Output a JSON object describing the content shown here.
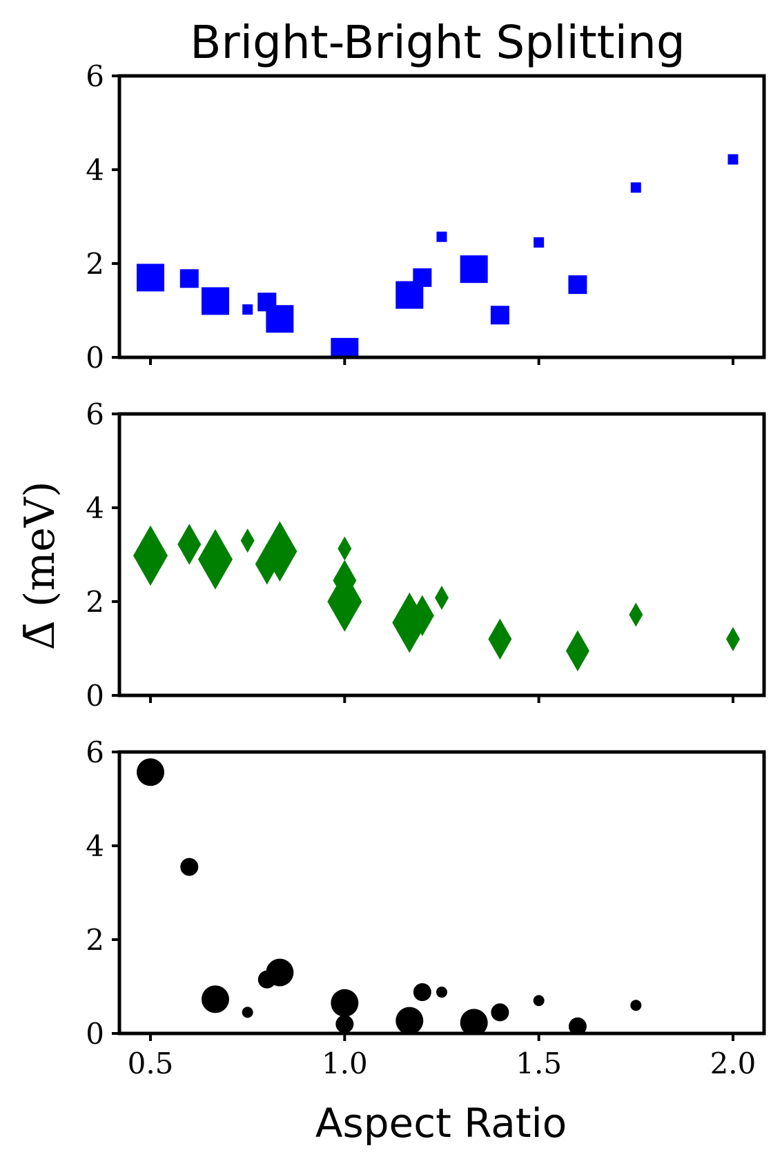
{
  "figure": {
    "title": "Bright-Bright Splitting",
    "xlabel": "Aspect Ratio",
    "ylabel": "Δ̄ (meV)"
  },
  "chart_data": [
    {
      "type": "scatter",
      "marker": "square",
      "color": "#0000ff",
      "xlim": [
        0.42,
        2.08
      ],
      "ylim": [
        0,
        6
      ],
      "xticks": [
        0.5,
        1.0,
        1.5,
        2.0
      ],
      "yticks": [
        0,
        2,
        4,
        6
      ],
      "show_xtick_labels": false,
      "grid": false,
      "points": [
        {
          "x": 0.5,
          "y": 1.7,
          "size": 3
        },
        {
          "x": 0.6,
          "y": 1.68,
          "size": 2
        },
        {
          "x": 0.667,
          "y": 1.2,
          "size": 3
        },
        {
          "x": 0.75,
          "y": 1.02,
          "size": 1
        },
        {
          "x": 0.8,
          "y": 1.18,
          "size": 2
        },
        {
          "x": 0.833,
          "y": 0.82,
          "size": 3
        },
        {
          "x": 1.0,
          "y": 0.12,
          "size": 3
        },
        {
          "x": 1.167,
          "y": 1.33,
          "size": 3
        },
        {
          "x": 1.2,
          "y": 1.7,
          "size": 2
        },
        {
          "x": 1.25,
          "y": 2.57,
          "size": 1
        },
        {
          "x": 1.333,
          "y": 1.88,
          "size": 3
        },
        {
          "x": 1.4,
          "y": 0.9,
          "size": 2
        },
        {
          "x": 1.5,
          "y": 2.45,
          "size": 1
        },
        {
          "x": 1.6,
          "y": 1.55,
          "size": 2
        },
        {
          "x": 1.75,
          "y": 3.62,
          "size": 1
        },
        {
          "x": 2.0,
          "y": 4.22,
          "size": 1
        }
      ]
    },
    {
      "type": "scatter",
      "marker": "diamond",
      "color": "#008000",
      "xlim": [
        0.42,
        2.08
      ],
      "ylim": [
        0,
        6
      ],
      "xticks": [
        0.5,
        1.0,
        1.5,
        2.0
      ],
      "yticks": [
        0,
        2,
        4,
        6
      ],
      "show_xtick_labels": false,
      "grid": false,
      "points": [
        {
          "x": 0.5,
          "y": 2.98,
          "size": 3
        },
        {
          "x": 0.6,
          "y": 3.22,
          "size": 2
        },
        {
          "x": 0.667,
          "y": 2.9,
          "size": 3
        },
        {
          "x": 0.75,
          "y": 3.3,
          "size": 1
        },
        {
          "x": 0.8,
          "y": 2.8,
          "size": 2
        },
        {
          "x": 0.833,
          "y": 3.07,
          "size": 3
        },
        {
          "x": 1.0,
          "y": 3.13,
          "size": 1
        },
        {
          "x": 1.0,
          "y": 2.45,
          "size": 2
        },
        {
          "x": 1.0,
          "y": 2.0,
          "size": 3
        },
        {
          "x": 1.167,
          "y": 1.55,
          "size": 3
        },
        {
          "x": 1.2,
          "y": 1.7,
          "size": 2
        },
        {
          "x": 1.25,
          "y": 2.08,
          "size": 1
        },
        {
          "x": 1.4,
          "y": 1.2,
          "size": 2
        },
        {
          "x": 1.6,
          "y": 0.95,
          "size": 2
        },
        {
          "x": 1.75,
          "y": 1.72,
          "size": 1
        },
        {
          "x": 2.0,
          "y": 1.2,
          "size": 1
        }
      ]
    },
    {
      "type": "scatter",
      "marker": "circle",
      "color": "#000000",
      "xlim": [
        0.42,
        2.08
      ],
      "ylim": [
        0,
        6
      ],
      "xticks": [
        0.5,
        1.0,
        1.5,
        2.0
      ],
      "yticks": [
        0,
        2,
        4,
        6
      ],
      "show_xtick_labels": true,
      "grid": false,
      "points": [
        {
          "x": 0.5,
          "y": 5.57,
          "size": 3
        },
        {
          "x": 0.6,
          "y": 3.55,
          "size": 2
        },
        {
          "x": 0.667,
          "y": 0.73,
          "size": 3
        },
        {
          "x": 0.75,
          "y": 0.45,
          "size": 1
        },
        {
          "x": 0.8,
          "y": 1.15,
          "size": 2
        },
        {
          "x": 0.833,
          "y": 1.3,
          "size": 3
        },
        {
          "x": 1.0,
          "y": 0.65,
          "size": 3
        },
        {
          "x": 1.0,
          "y": 0.2,
          "size": 2
        },
        {
          "x": 1.167,
          "y": 0.27,
          "size": 3
        },
        {
          "x": 1.2,
          "y": 0.88,
          "size": 2
        },
        {
          "x": 1.25,
          "y": 0.88,
          "size": 1
        },
        {
          "x": 1.333,
          "y": 0.23,
          "size": 3
        },
        {
          "x": 1.4,
          "y": 0.45,
          "size": 2
        },
        {
          "x": 1.5,
          "y": 0.7,
          "size": 1
        },
        {
          "x": 1.6,
          "y": 0.15,
          "size": 2
        },
        {
          "x": 1.75,
          "y": 0.6,
          "size": 1
        }
      ]
    }
  ]
}
